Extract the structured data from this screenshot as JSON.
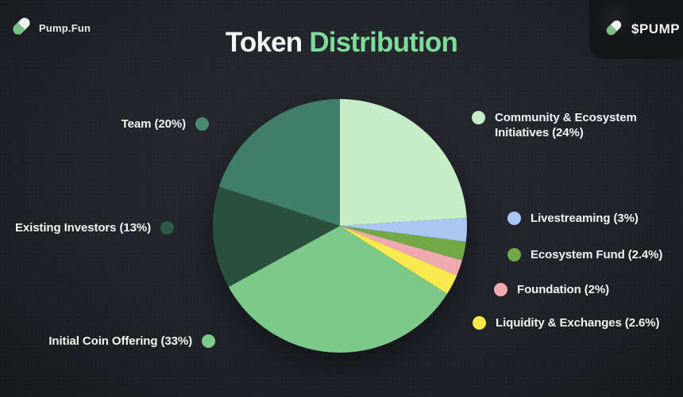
{
  "header": {
    "logo": {
      "text": "Pump.Fun",
      "icon": "pill-icon"
    },
    "title": {
      "white": "Token",
      "green": "Distribution"
    },
    "ticker_badge": {
      "text": "$PUMP",
      "icon": "pill-icon"
    }
  },
  "colors": {
    "background_center": "#282c31",
    "background_edge": "#15171a",
    "title_accent": "#7edc9b",
    "text": "#f3f5f3",
    "badge_bg": "#14161a",
    "pill_green": "#78c085",
    "pill_white": "#eef1ec"
  },
  "chart_data": {
    "type": "pie",
    "title": "Token Distribution",
    "start_angle_deg": 0,
    "direction": "clockwise",
    "legend_position": "sides",
    "segments": [
      {
        "label": "Community & Ecosystem Initiatives",
        "value": 24,
        "percent_label": "24%",
        "color": "#c7ecc8"
      },
      {
        "label": "Livestreaming",
        "value": 3,
        "percent_label": "3%",
        "color": "#a9c7f2"
      },
      {
        "label": "Ecosystem Fund",
        "value": 2.4,
        "percent_label": "2.4%",
        "color": "#72a845"
      },
      {
        "label": "Foundation",
        "value": 2,
        "percent_label": "2%",
        "color": "#f0a9b1"
      },
      {
        "label": "Liquidity & Exchanges",
        "value": 2.6,
        "percent_label": "2.6%",
        "color": "#f9e94d"
      },
      {
        "label": "Initial Coin Offering",
        "value": 33,
        "percent_label": "33%",
        "color": "#7cc98a"
      },
      {
        "label": "Existing Investors",
        "value": 13,
        "percent_label": "13%",
        "color": "#2a4f3d"
      },
      {
        "label": "Team",
        "value": 20,
        "percent_label": "20%",
        "color": "#40806b"
      }
    ]
  },
  "legend": {
    "left": [
      {
        "label": "Team (20%)",
        "color": "#4a8a74"
      },
      {
        "label": "Existing Investors (13%)",
        "color": "#2d5a45"
      },
      {
        "label": "Initial Coin Offering (33%)",
        "color": "#7cc98a"
      }
    ],
    "right": [
      {
        "lines": [
          "Community & Ecosystem",
          "Initiatives (24%)"
        ],
        "color": "#c7ecc8"
      },
      {
        "lines": [
          "Livestreaming (3%)"
        ],
        "color": "#a9c7f2"
      },
      {
        "lines": [
          "Ecosystem Fund (2.4%)"
        ],
        "color": "#72a845"
      },
      {
        "lines": [
          "Foundation (2%)"
        ],
        "color": "#f0a9b1"
      },
      {
        "lines": [
          "Liquidity & Exchanges (2.6%)"
        ],
        "color": "#f9e94d"
      }
    ]
  }
}
